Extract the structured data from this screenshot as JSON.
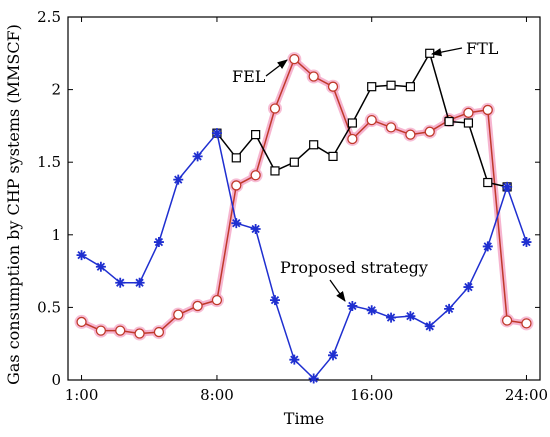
{
  "chart_data": {
    "type": "line",
    "title": "",
    "xlabel": "Time",
    "ylabel": "Gas consumption by CHP systems (MMSCF)",
    "x": [
      1,
      2,
      3,
      4,
      5,
      6,
      7,
      8,
      9,
      10,
      11,
      12,
      13,
      14,
      15,
      16,
      17,
      18,
      19,
      20,
      21,
      22,
      23,
      24
    ],
    "xlim": [
      0.3,
      24.7
    ],
    "ylim": [
      0,
      2.5
    ],
    "x_ticks": [
      {
        "value": 1,
        "label": "1:00"
      },
      {
        "value": 8,
        "label": "8:00"
      },
      {
        "value": 16,
        "label": "16:00"
      },
      {
        "value": 24,
        "label": "24:00"
      }
    ],
    "y_ticks": [
      {
        "value": 0,
        "label": "0"
      },
      {
        "value": 0.5,
        "label": "0.5"
      },
      {
        "value": 1,
        "label": "1"
      },
      {
        "value": 1.5,
        "label": "1.5"
      },
      {
        "value": 2,
        "label": "2"
      },
      {
        "value": 2.5,
        "label": "2.5"
      }
    ],
    "grid": false,
    "series": [
      {
        "name": "FTL",
        "color": "#000000",
        "marker": "square",
        "x": [
          8,
          9,
          10,
          11,
          12,
          13,
          14,
          15,
          16,
          17,
          18,
          19,
          20,
          21,
          22,
          23
        ],
        "values": [
          1.7,
          1.53,
          1.69,
          1.44,
          1.5,
          1.62,
          1.54,
          1.77,
          2.02,
          2.03,
          2.02,
          2.25,
          1.78,
          1.77,
          1.36,
          1.33
        ]
      },
      {
        "name": "FEL",
        "color": "#c0392b",
        "glow": "#f4a8c8",
        "marker": "circle",
        "x": [
          1,
          2,
          3,
          4,
          5,
          6,
          7,
          8,
          9,
          10,
          11,
          12,
          13,
          14,
          15,
          16,
          17,
          18,
          19,
          20,
          21,
          22,
          23,
          24
        ],
        "values": [
          0.4,
          0.34,
          0.34,
          0.32,
          0.33,
          0.45,
          0.51,
          0.55,
          1.34,
          1.41,
          1.87,
          2.21,
          2.09,
          2.02,
          1.66,
          1.79,
          1.74,
          1.69,
          1.71,
          1.79,
          1.84,
          1.86,
          0.41,
          0.39
        ]
      },
      {
        "name": "Proposed strategy",
        "color": "#1f2fd0",
        "marker": "asterisk",
        "x": [
          1,
          2,
          3,
          4,
          5,
          6,
          7,
          8,
          9,
          10,
          11,
          12,
          13,
          14,
          15,
          16,
          17,
          18,
          19,
          20,
          21,
          22,
          23,
          24
        ],
        "values": [
          0.86,
          0.78,
          0.67,
          0.67,
          0.95,
          1.38,
          1.54,
          1.7,
          1.08,
          1.04,
          0.55,
          0.14,
          0.01,
          0.17,
          0.51,
          0.48,
          0.43,
          0.44,
          0.37,
          0.49,
          0.64,
          0.92,
          1.33,
          0.95
        ]
      }
    ],
    "annotations": [
      {
        "text": "FTL",
        "series": "FTL"
      },
      {
        "text": "FEL",
        "series": "FEL"
      },
      {
        "text": "Proposed strategy",
        "series": "Proposed strategy"
      }
    ]
  }
}
